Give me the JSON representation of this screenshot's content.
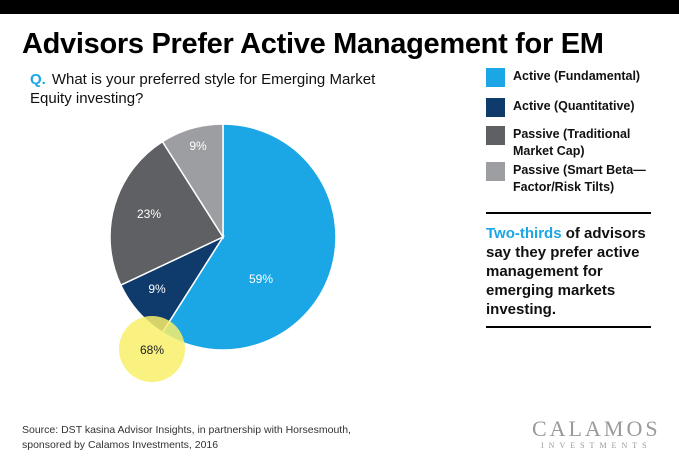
{
  "title": "Advisors Prefer Active Management for EM",
  "question": {
    "prefix": "Q.",
    "text": "What is your preferred style for Emerging Market Equity investing?"
  },
  "legend": [
    {
      "label": "Active (Fundamental)",
      "color": "#1ba6e6"
    },
    {
      "label": "Active (Quantitative)",
      "color": "#0e3a6c"
    },
    {
      "label": "Passive (Traditional Market Cap)",
      "color": "#5f6063"
    },
    {
      "label": "Passive (Smart Beta— Factor/Risk Tilts)",
      "color": "#9d9ea1"
    }
  ],
  "callout": {
    "highlight": "Two-thirds",
    "rest": " of advisors say they prefer active management for emerging markets investing."
  },
  "source": "Source: DST kasina Advisor Insights, in partnership with Horsesmouth, sponsored by Calamos Investments, 2016",
  "logo": {
    "main": "CALAMOS",
    "sub": "INVESTMENTS"
  },
  "chart_data": {
    "type": "pie",
    "title": "",
    "slices": [
      {
        "name": "Active (Fundamental)",
        "value": 59,
        "label": "59%",
        "color": "#1ba6e6"
      },
      {
        "name": "Active (Quantitative)",
        "value": 9,
        "label": "9%",
        "color": "#0e3a6c"
      },
      {
        "name": "Passive (Traditional Market Cap)",
        "value": 23,
        "label": "23%",
        "color": "#5f6063"
      },
      {
        "name": "Passive (Smart Beta— Factor/Risk Tilts)",
        "value": 9,
        "label": "9%",
        "color": "#9d9ea1"
      }
    ],
    "annotation": {
      "label": "68%",
      "color": "#f8ef6a"
    }
  }
}
